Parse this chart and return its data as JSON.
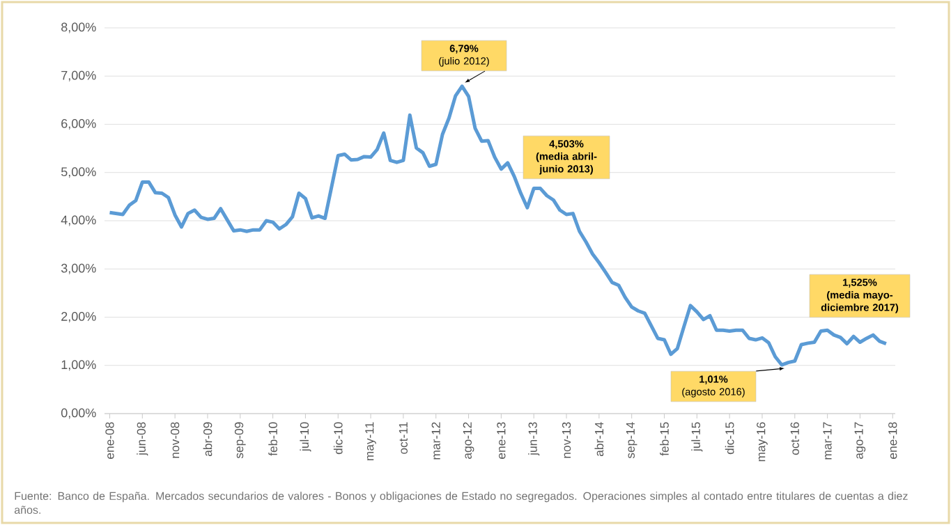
{
  "chart_data": {
    "type": "line",
    "categories": [
      "ene-08",
      null,
      null,
      null,
      null,
      "jun-08",
      null,
      null,
      null,
      null,
      "nov-08",
      null,
      null,
      null,
      null,
      "abr-09",
      null,
      null,
      null,
      null,
      "sep-09",
      null,
      null,
      null,
      null,
      "feb-10",
      null,
      null,
      null,
      null,
      "jul-10",
      null,
      null,
      null,
      null,
      "dic-10",
      null,
      null,
      null,
      null,
      "may-11",
      null,
      null,
      null,
      null,
      "oct-11",
      null,
      null,
      null,
      null,
      "mar-12",
      null,
      null,
      null,
      null,
      "ago-12",
      null,
      null,
      null,
      null,
      "ene-13",
      null,
      null,
      null,
      null,
      "jun-13",
      null,
      null,
      null,
      null,
      "nov-13",
      null,
      null,
      null,
      null,
      "abr-14",
      null,
      null,
      null,
      null,
      "sep-14",
      null,
      null,
      null,
      null,
      "feb-15",
      null,
      null,
      null,
      null,
      "jul-15",
      null,
      null,
      null,
      null,
      "dic-15",
      null,
      null,
      null,
      null,
      "may-16",
      null,
      null,
      null,
      null,
      "oct-16",
      null,
      null,
      null,
      null,
      "mar-17",
      null,
      null,
      null,
      null,
      "ago-17",
      null,
      null,
      null,
      null,
      "ene-18"
    ],
    "series": [
      {
        "color": "#5b9bd5",
        "values": [
          4.17,
          4.15,
          4.13,
          4.32,
          4.42,
          4.8,
          4.8,
          4.58,
          4.57,
          4.48,
          4.12,
          3.87,
          4.15,
          4.22,
          4.07,
          4.03,
          4.05,
          4.25,
          4.02,
          3.79,
          3.81,
          3.78,
          3.81,
          3.81,
          4.0,
          3.97,
          3.83,
          3.92,
          4.08,
          4.57,
          4.46,
          4.06,
          4.1,
          4.05,
          4.7,
          5.35,
          5.38,
          5.26,
          5.27,
          5.33,
          5.32,
          5.48,
          5.82,
          5.25,
          5.21,
          5.25,
          6.19,
          5.51,
          5.41,
          5.13,
          5.17,
          5.79,
          6.13,
          6.59,
          6.79,
          6.58,
          5.92,
          5.65,
          5.66,
          5.32,
          5.07,
          5.2,
          4.92,
          4.57,
          4.27,
          4.67,
          4.67,
          4.52,
          4.43,
          4.22,
          4.13,
          4.15,
          3.78,
          3.56,
          3.31,
          3.13,
          2.93,
          2.72,
          2.66,
          2.41,
          2.21,
          2.13,
          2.08,
          1.82,
          1.56,
          1.53,
          1.23,
          1.35,
          1.8,
          2.24,
          2.11,
          1.95,
          2.03,
          1.73,
          1.73,
          1.71,
          1.73,
          1.73,
          1.56,
          1.53,
          1.57,
          1.47,
          1.18,
          1.01,
          1.06,
          1.09,
          1.43,
          1.46,
          1.48,
          1.71,
          1.73,
          1.63,
          1.58,
          1.45,
          1.6,
          1.48,
          1.56,
          1.63,
          1.5,
          1.45,
          null
        ]
      }
    ],
    "ylim": [
      0,
      8
    ],
    "yticks": [
      {
        "value": 0,
        "label": "0,00%"
      },
      {
        "value": 1,
        "label": "1,00%"
      },
      {
        "value": 2,
        "label": "2,00%"
      },
      {
        "value": 3,
        "label": "3,00%"
      },
      {
        "value": 4,
        "label": "4,00%"
      },
      {
        "value": 5,
        "label": "5,00%"
      },
      {
        "value": 6,
        "label": "6,00%"
      },
      {
        "value": 7,
        "label": "7,00%"
      },
      {
        "value": 8,
        "label": "8,00%"
      }
    ],
    "grid": "y",
    "line_style": "solid",
    "marker": "none",
    "annotations": [
      "**6,79%** (julio 2012)",
      "4,503% (media abril-junio 2013)",
      "**1,01%** (agosto 2016)",
      "1,525% (media mayo-diciembre 2017)",
      "Fuente: Banco de España. Mercados secundarios de valores - Bonos y obligaciones de Estado no segregados. Operaciones simples al contado entre titulares de cuentas a diez años."
    ]
  }
}
